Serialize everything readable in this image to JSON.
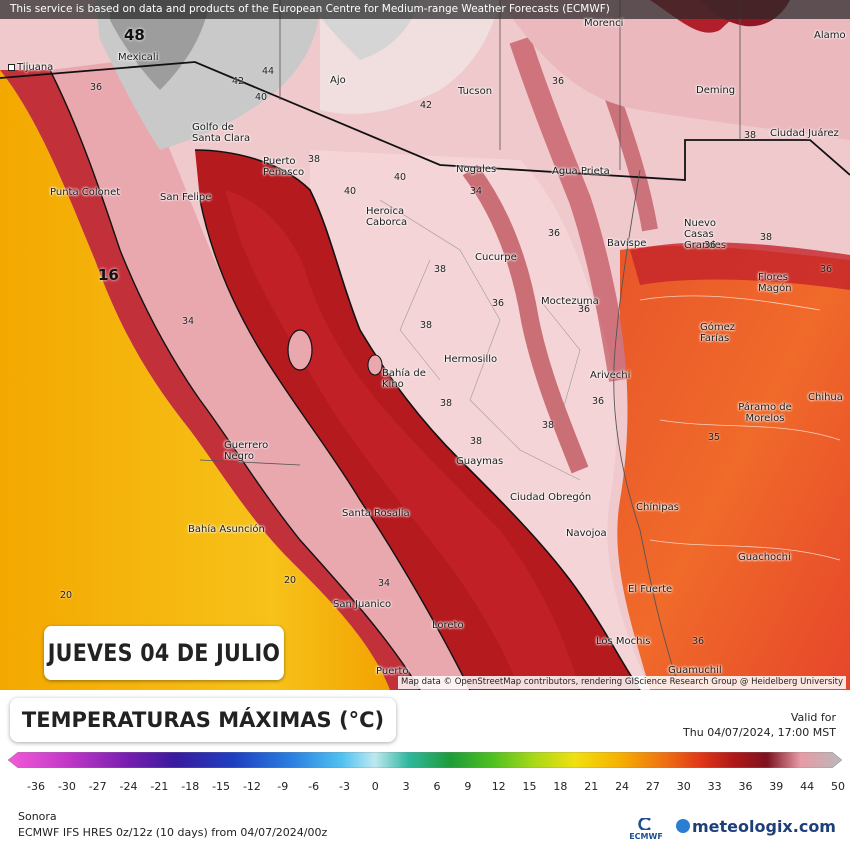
{
  "attribution_top": "This service is based on data and products of the European Centre for Medium-range Weather Forecasts (ECMWF)",
  "attribution_bottom": "Map data © OpenStreetMap contributors, rendering GIScience Research Group @ Heidelberg University",
  "date_label": "JUEVES 04 DE JULIO",
  "title": "TEMPERATURAS MÁXIMAS (°C)",
  "valid_label": "Valid for",
  "valid_time": "Thu 04/07/2024, 17:00 MST",
  "region": "Sonora",
  "model_info": "ECMWF IFS HRES 0z/12z (10 days) from 04/07/2024/00z",
  "brand": "meteologix.com",
  "ecmwf_logo": "ECMWF",
  "colors": {
    "sea_hot": "#f5b400",
    "land_hot": "#b01818",
    "land_warm": "#f2c4c8",
    "cool": "#bdbdbd"
  },
  "colorbar_ticks": [
    "-36",
    "-30",
    "-27",
    "-24",
    "-21",
    "-18",
    "-15",
    "-12",
    "-9",
    "-6",
    "-3",
    "0",
    "3",
    "6",
    "9",
    "12",
    "15",
    "18",
    "21",
    "24",
    "27",
    "30",
    "33",
    "36",
    "39",
    "44",
    "50"
  ],
  "cities": [
    {
      "name": "Tijuana"
    },
    {
      "name": "Mexicali"
    },
    {
      "name": "Tucson"
    },
    {
      "name": "Deming"
    },
    {
      "name": "Ciudad Juárez"
    },
    {
      "name": "Golfo de Santa Clara"
    },
    {
      "name": "Puerto Peñasco"
    },
    {
      "name": "Nogales"
    },
    {
      "name": "Agua Prieta"
    },
    {
      "name": "Punta Colonet"
    },
    {
      "name": "San Felipe"
    },
    {
      "name": "Heroica Caborca"
    },
    {
      "name": "Bavispe"
    },
    {
      "name": "Nuevo Casas Grandes"
    },
    {
      "name": "Cucurpe"
    },
    {
      "name": "Flores Magón"
    },
    {
      "name": "Moctezuma"
    },
    {
      "name": "Gómez Farías"
    },
    {
      "name": "Hermosillo"
    },
    {
      "name": "Bahía de Kino"
    },
    {
      "name": "Arivechi"
    },
    {
      "name": "Chihua"
    },
    {
      "name": "Páramo de Morelos"
    },
    {
      "name": "Guerrero Negro"
    },
    {
      "name": "Guaymas"
    },
    {
      "name": "Ciudad Obregón"
    },
    {
      "name": "Chínipas"
    },
    {
      "name": "Santa Rosalía"
    },
    {
      "name": "Bahía Asunción"
    },
    {
      "name": "Navojoa"
    },
    {
      "name": "Guachochi"
    },
    {
      "name": "El Fuerte"
    },
    {
      "name": "San Juanico"
    },
    {
      "name": "Loreto"
    },
    {
      "name": "Los Mochis"
    },
    {
      "name": "Guamuchil"
    },
    {
      "name": "Puerto"
    },
    {
      "name": "Ajo"
    },
    {
      "name": "Alamo"
    },
    {
      "name": "Morenci"
    }
  ],
  "values": [
    "48",
    "44",
    "42",
    "40",
    "42",
    "38",
    "40",
    "36",
    "34",
    "36",
    "16",
    "34",
    "38",
    "36",
    "38",
    "38",
    "36",
    "38",
    "38",
    "36",
    "20",
    "20",
    "34",
    "36",
    "36",
    "38",
    "36",
    "38",
    "40",
    "36",
    "35"
  ]
}
